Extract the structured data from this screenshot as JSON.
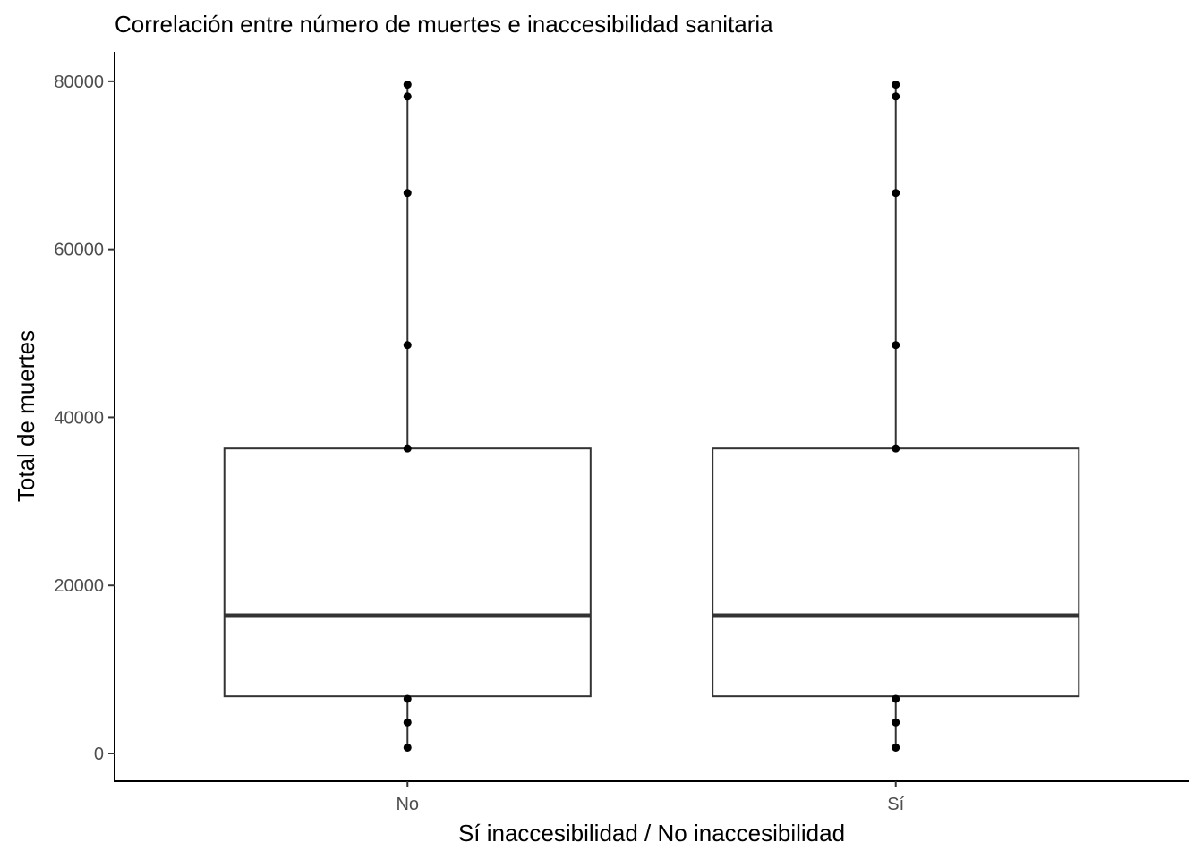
{
  "chart_data": {
    "type": "boxplot",
    "title": "Correlación entre número de muertes e inaccesibilidad sanitaria",
    "xlabel": "Sí inaccesibilidad / No inaccesibilidad",
    "ylabel": "Total de muertes",
    "categories": [
      "No",
      "Sí"
    ],
    "y_ticks": [
      0,
      20000,
      40000,
      60000,
      80000
    ],
    "y_tick_labels": [
      "0",
      "20000",
      "40000",
      "60000",
      "80000"
    ],
    "ylim": [
      -3300,
      83500
    ],
    "grid": false,
    "legend": "none",
    "boxes": [
      {
        "category": "No",
        "q1": 6800,
        "median": 16400,
        "q3": 36300,
        "whisker_low": 700,
        "whisker_high": 79700,
        "points": [
          700,
          3700,
          6500,
          36300,
          48600,
          66700,
          78200,
          79600
        ]
      },
      {
        "category": "Sí",
        "q1": 6800,
        "median": 16400,
        "q3": 36300,
        "whisker_low": 700,
        "whisker_high": 79700,
        "points": [
          700,
          3700,
          6500,
          36300,
          48600,
          66700,
          78200,
          79600
        ]
      }
    ],
    "colors": {
      "box_fill": "#ffffff",
      "line": "#333333",
      "point": "#000000",
      "axis": "#000000"
    }
  }
}
